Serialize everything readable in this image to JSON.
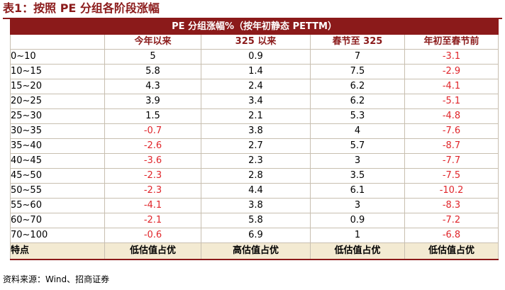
{
  "title": "表1：按照 PE 分组各阶段涨幅",
  "table": {
    "group_header": "PE 分组涨幅%（按年初静态 PETTM）",
    "columns": [
      "今年以来",
      "325 以来",
      "春节至 325",
      "年初至春节前"
    ],
    "rows": [
      {
        "label": "0~10",
        "values": [
          "5",
          "0.9",
          "7",
          "-3.1"
        ]
      },
      {
        "label": "10~15",
        "values": [
          "5.8",
          "1.4",
          "7.5",
          "-2.9"
        ]
      },
      {
        "label": "15~20",
        "values": [
          "4.3",
          "2.4",
          "6.2",
          "-4.1"
        ]
      },
      {
        "label": "20~25",
        "values": [
          "3.9",
          "3.4",
          "6.2",
          "-5.1"
        ]
      },
      {
        "label": "25~30",
        "values": [
          "1.5",
          "2.1",
          "5.3",
          "-4.8"
        ]
      },
      {
        "label": "30~35",
        "values": [
          "-0.7",
          "3.8",
          "4",
          "-7.6"
        ]
      },
      {
        "label": "35~40",
        "values": [
          "-2.6",
          "2.7",
          "5.7",
          "-8.7"
        ]
      },
      {
        "label": "40~45",
        "values": [
          "-3.6",
          "2.3",
          "3",
          "-7.7"
        ]
      },
      {
        "label": "45~50",
        "values": [
          "-2.3",
          "2.8",
          "3.5",
          "-7.5"
        ]
      },
      {
        "label": "50~55",
        "values": [
          "-2.3",
          "4.4",
          "6.1",
          "-10.2"
        ]
      },
      {
        "label": "55~60",
        "values": [
          "-4.1",
          "3.8",
          "3",
          "-8.3"
        ]
      },
      {
        "label": "60~70",
        "values": [
          "-2.1",
          "5.8",
          "0.9",
          "-7.2"
        ]
      },
      {
        "label": "70~100",
        "values": [
          "-0.6",
          "6.9",
          "1",
          "-6.8"
        ]
      }
    ],
    "feature_row": {
      "label": "特点",
      "values": [
        "低估值占优",
        "高估值占优",
        "低估值占优",
        "低估值占优"
      ]
    }
  },
  "source": "资料来源：Wind、招商证券",
  "colors": {
    "header_bg": "#8b1a1a",
    "negative": "#e0262b",
    "feature_bg": "#f3ead2"
  }
}
